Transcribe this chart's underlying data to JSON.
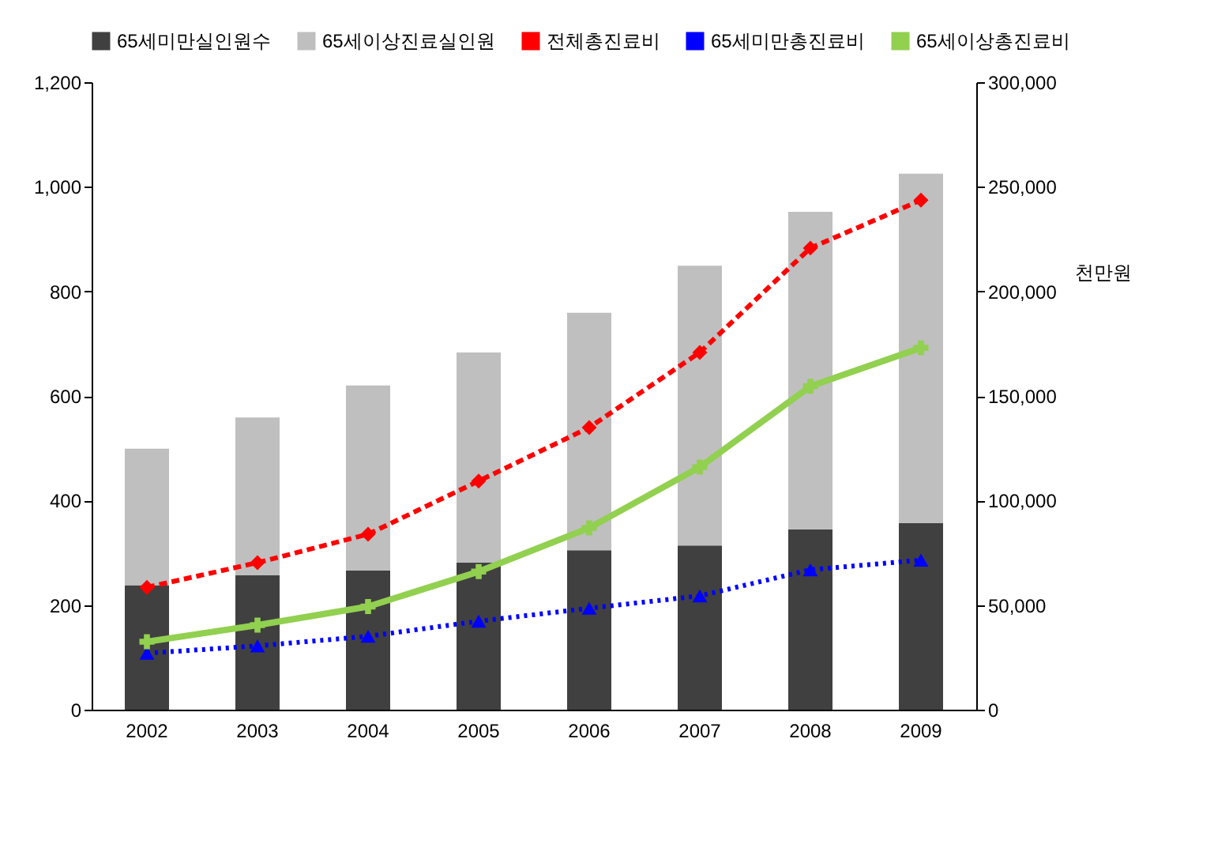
{
  "chart_data": {
    "type": "bar",
    "stacked": true,
    "categories": [
      "2002",
      "2003",
      "2004",
      "2005",
      "2006",
      "2007",
      "2008",
      "2009"
    ],
    "series": [
      {
        "name": "65세미만실인원수",
        "color": "#404040",
        "values": [
          238,
          257,
          266,
          281,
          305,
          314,
          345,
          357
        ]
      },
      {
        "name": "65세이상진료실인원",
        "color": "#bfbfbf",
        "values": [
          261,
          302,
          354,
          402,
          454,
          535,
          607,
          668
        ]
      },
      {
        "name": "전체총진료비",
        "type": "line",
        "axis": "y2",
        "color": "#ff0000",
        "marker": "diamond",
        "line_style": "dashed",
        "values": [
          58500,
          70300,
          83900,
          109300,
          134900,
          170800,
          220700,
          243600
        ]
      },
      {
        "name": "65세미만총진료비",
        "type": "line",
        "axis": "y2",
        "color": "#0000ff",
        "marker": "triangle",
        "line_style": "dotted",
        "values": [
          27000,
          30500,
          35100,
          42300,
          48500,
          54400,
          66900,
          71500
        ]
      },
      {
        "name": "65세이상총진료비",
        "type": "line",
        "axis": "y2",
        "color": "#92d050",
        "marker": "cross",
        "line_style": "solid",
        "values": [
          32500,
          40400,
          49300,
          66000,
          86900,
          116000,
          154600,
          173000
        ]
      }
    ],
    "ylim": [
      0,
      1200
    ],
    "yticks": [
      0,
      200,
      400,
      600,
      800,
      {
        "value": 1000,
        "label": "1,000"
      },
      {
        "value": 1200,
        "label": "1,200"
      }
    ],
    "y2lim": [
      0,
      300000
    ],
    "y2ticks": [
      0,
      {
        "value": 50000,
        "label": "50,000"
      },
      {
        "value": 100000,
        "label": "100,000"
      },
      {
        "value": 150000,
        "label": "150,000"
      },
      {
        "value": 200000,
        "label": "200,000"
      },
      {
        "value": 250000,
        "label": "250,000"
      },
      {
        "value": 300000,
        "label": "300,000"
      }
    ],
    "y2label": "천만원",
    "legend": "top",
    "grid": false
  }
}
